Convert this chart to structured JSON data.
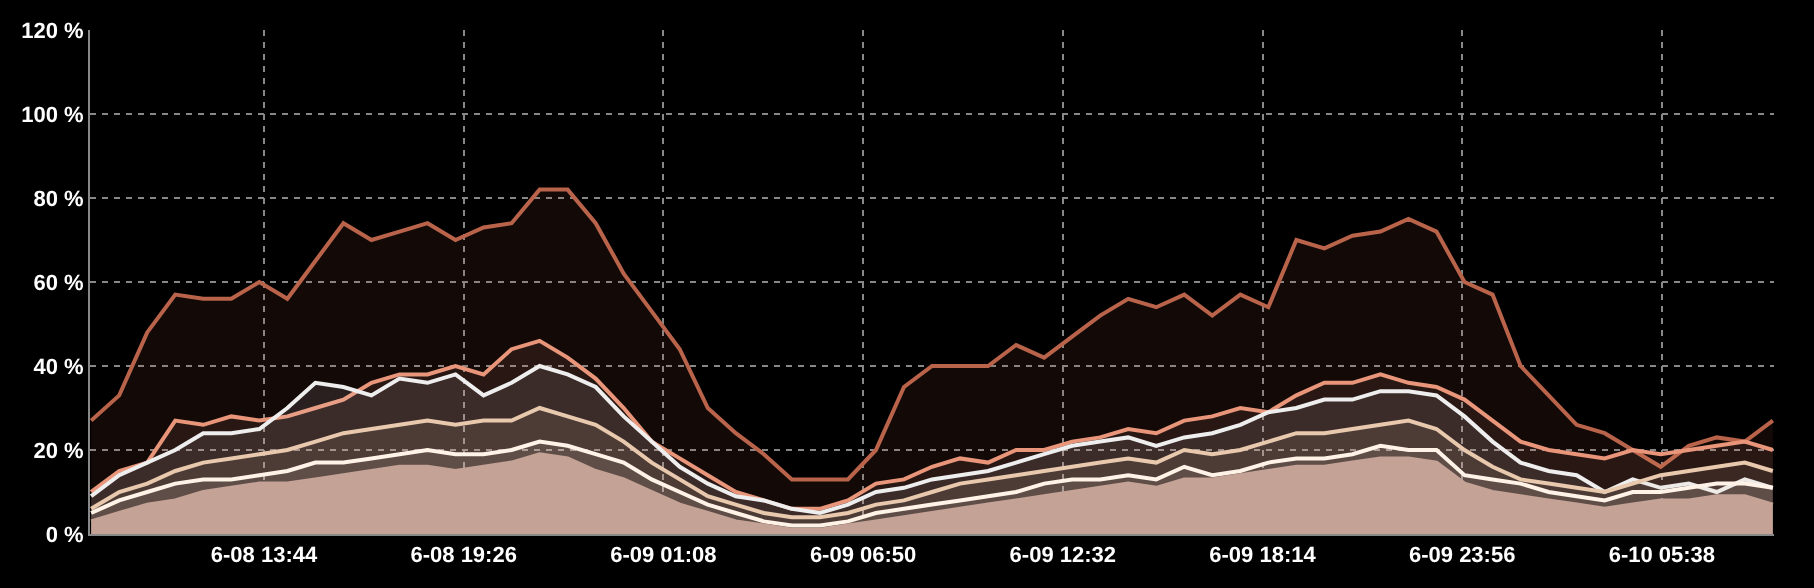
{
  "chart_data": {
    "type": "area",
    "x": [
      "--06-08T08:48",
      "--06-08T09:36",
      "--06-08T10:24",
      "--06-08T11:12",
      "--06-08T12:00",
      "--06-08T12:48",
      "--06-08T13:36",
      "--06-08T14:24",
      "--06-08T15:12",
      "--06-08T16:00",
      "--06-08T16:48",
      "--06-08T17:36",
      "--06-08T18:24",
      "--06-08T19:12",
      "--06-08T20:00",
      "--06-08T20:48",
      "--06-08T21:36",
      "--06-08T22:24",
      "--06-08T23:12",
      "--06-09T00:00",
      "--06-09T00:48",
      "--06-09T01:36",
      "--06-09T02:24",
      "--06-09T03:12",
      "--06-09T04:00",
      "--06-09T04:48",
      "--06-09T05:36",
      "--06-09T06:24",
      "--06-09T07:12",
      "--06-09T08:00",
      "--06-09T08:48",
      "--06-09T09:36",
      "--06-09T10:24",
      "--06-09T11:12",
      "--06-09T12:00",
      "--06-09T12:48",
      "--06-09T13:36",
      "--06-09T14:24",
      "--06-09T15:12",
      "--06-09T16:00",
      "--06-09T16:48",
      "--06-09T17:36",
      "--06-09T18:24",
      "--06-09T19:12",
      "--06-09T20:00",
      "--06-09T20:48",
      "--06-09T21:36",
      "--06-09T22:24",
      "--06-09T23:12",
      "--06-10T00:00",
      "--06-10T00:48",
      "--06-10T01:36",
      "--06-10T02:24",
      "--06-10T03:12",
      "--06-10T04:00",
      "--06-10T04:48",
      "--06-10T05:36",
      "--06-10T06:24",
      "--06-10T07:12",
      "--06-10T08:00",
      "--06-10T08:48"
    ],
    "series": [
      {
        "color": "#b9644a",
        "values": [
          27,
          33,
          48,
          57,
          56,
          56,
          60,
          56,
          65,
          74,
          70,
          72,
          74,
          70,
          73,
          74,
          82,
          82,
          74,
          62,
          53,
          44,
          30,
          24,
          19,
          13,
          13,
          13,
          20,
          35,
          40,
          40,
          40,
          45,
          42,
          47,
          52,
          56,
          54,
          57,
          52,
          57,
          54,
          70,
          68,
          71,
          72,
          75,
          72,
          60,
          57,
          40,
          33,
          26,
          24,
          20,
          16,
          21,
          23,
          22,
          27
        ]
      },
      {
        "color": "#e8957a",
        "values": [
          10,
          15,
          17,
          27,
          26,
          28,
          27,
          28,
          30,
          32,
          36,
          38,
          38,
          40,
          38,
          44,
          46,
          42,
          37,
          30,
          22,
          18,
          14,
          10,
          8,
          6,
          6,
          8,
          12,
          13,
          16,
          18,
          17,
          20,
          20,
          22,
          23,
          25,
          24,
          27,
          28,
          30,
          29,
          33,
          36,
          36,
          38,
          36,
          35,
          32,
          27,
          22,
          20,
          19,
          18,
          20,
          19,
          20,
          21,
          22,
          20
        ]
      },
      {
        "color": "#eeeeee",
        "values": [
          9,
          14,
          17,
          20,
          24,
          24,
          25,
          30,
          36,
          35,
          33,
          37,
          36,
          38,
          33,
          36,
          40,
          38,
          35,
          28,
          22,
          16,
          12,
          9,
          8,
          6,
          5,
          7,
          10,
          11,
          13,
          14,
          15,
          17,
          19,
          21,
          22,
          23,
          21,
          23,
          24,
          26,
          29,
          30,
          32,
          32,
          34,
          34,
          33,
          28,
          22,
          17,
          15,
          14,
          10,
          13,
          11,
          12,
          10,
          13,
          11
        ]
      },
      {
        "color": "#e9c9ae",
        "values": [
          6,
          10,
          12,
          15,
          17,
          18,
          19,
          20,
          22,
          24,
          25,
          26,
          27,
          26,
          27,
          27,
          30,
          28,
          26,
          22,
          17,
          13,
          9,
          7,
          5,
          4,
          4,
          5,
          7,
          8,
          10,
          12,
          13,
          14,
          15,
          16,
          17,
          18,
          17,
          20,
          19,
          20,
          22,
          24,
          24,
          25,
          26,
          27,
          25,
          20,
          16,
          13,
          12,
          11,
          10,
          12,
          14,
          15,
          16,
          17,
          15
        ]
      },
      {
        "color": "#fff2e6",
        "values": [
          5,
          8,
          10,
          12,
          13,
          13,
          14,
          15,
          17,
          17,
          18,
          19,
          20,
          19,
          19,
          20,
          22,
          21,
          19,
          17,
          13,
          10,
          7,
          5,
          3,
          2,
          2,
          3,
          5,
          6,
          7,
          8,
          9,
          10,
          12,
          13,
          13,
          14,
          13,
          16,
          14,
          15,
          17,
          18,
          18,
          19,
          21,
          20,
          20,
          14,
          13,
          12,
          10,
          9,
          8,
          10,
          10,
          11,
          12,
          12,
          11
        ]
      },
      {
        "color": "#c4a295",
        "values": [
          3,
          5,
          7,
          8,
          10,
          11,
          12,
          12,
          13,
          14,
          15,
          16,
          16,
          15,
          16,
          17,
          19,
          18,
          15,
          13,
          10,
          7,
          5,
          3,
          2,
          1,
          1,
          2,
          3,
          4,
          5,
          6,
          7,
          8,
          9,
          10,
          11,
          12,
          11,
          13,
          13,
          14,
          15,
          16,
          16,
          17,
          18,
          18,
          17,
          12,
          10,
          9,
          8,
          7,
          6,
          7,
          8,
          8,
          9,
          9,
          7
        ]
      }
    ],
    "xlim": [
      "--06-08T08:46",
      "--06-10T08:50"
    ],
    "xticks": [
      {
        "value": "--06-08T13:44",
        "label": "6-08 13:44"
      },
      {
        "value": "--06-08T19:26",
        "label": "6-08 19:26"
      },
      {
        "value": "--06-09T01:08",
        "label": "6-09 01:08"
      },
      {
        "value": "--06-09T06:50",
        "label": "6-09 06:50"
      },
      {
        "value": "--06-09T12:32",
        "label": "6-09 12:32"
      },
      {
        "value": "--06-09T18:14",
        "label": "6-09 18:14"
      },
      {
        "value": "--06-09T23:56",
        "label": "6-09 23:56"
      },
      {
        "value": "--06-10T05:38",
        "label": "6-10 05:38"
      }
    ],
    "ylim": [
      0,
      120
    ],
    "yticks": [
      {
        "value": 0,
        "label": "0 %"
      },
      {
        "value": 20,
        "label": "20 %"
      },
      {
        "value": 40,
        "label": "40 %"
      },
      {
        "value": 60,
        "label": "60 %"
      },
      {
        "value": 80,
        "label": "80 %"
      },
      {
        "value": 100,
        "label": "100 %"
      },
      {
        "value": 120,
        "label": "120 %"
      }
    ],
    "grid": true
  }
}
